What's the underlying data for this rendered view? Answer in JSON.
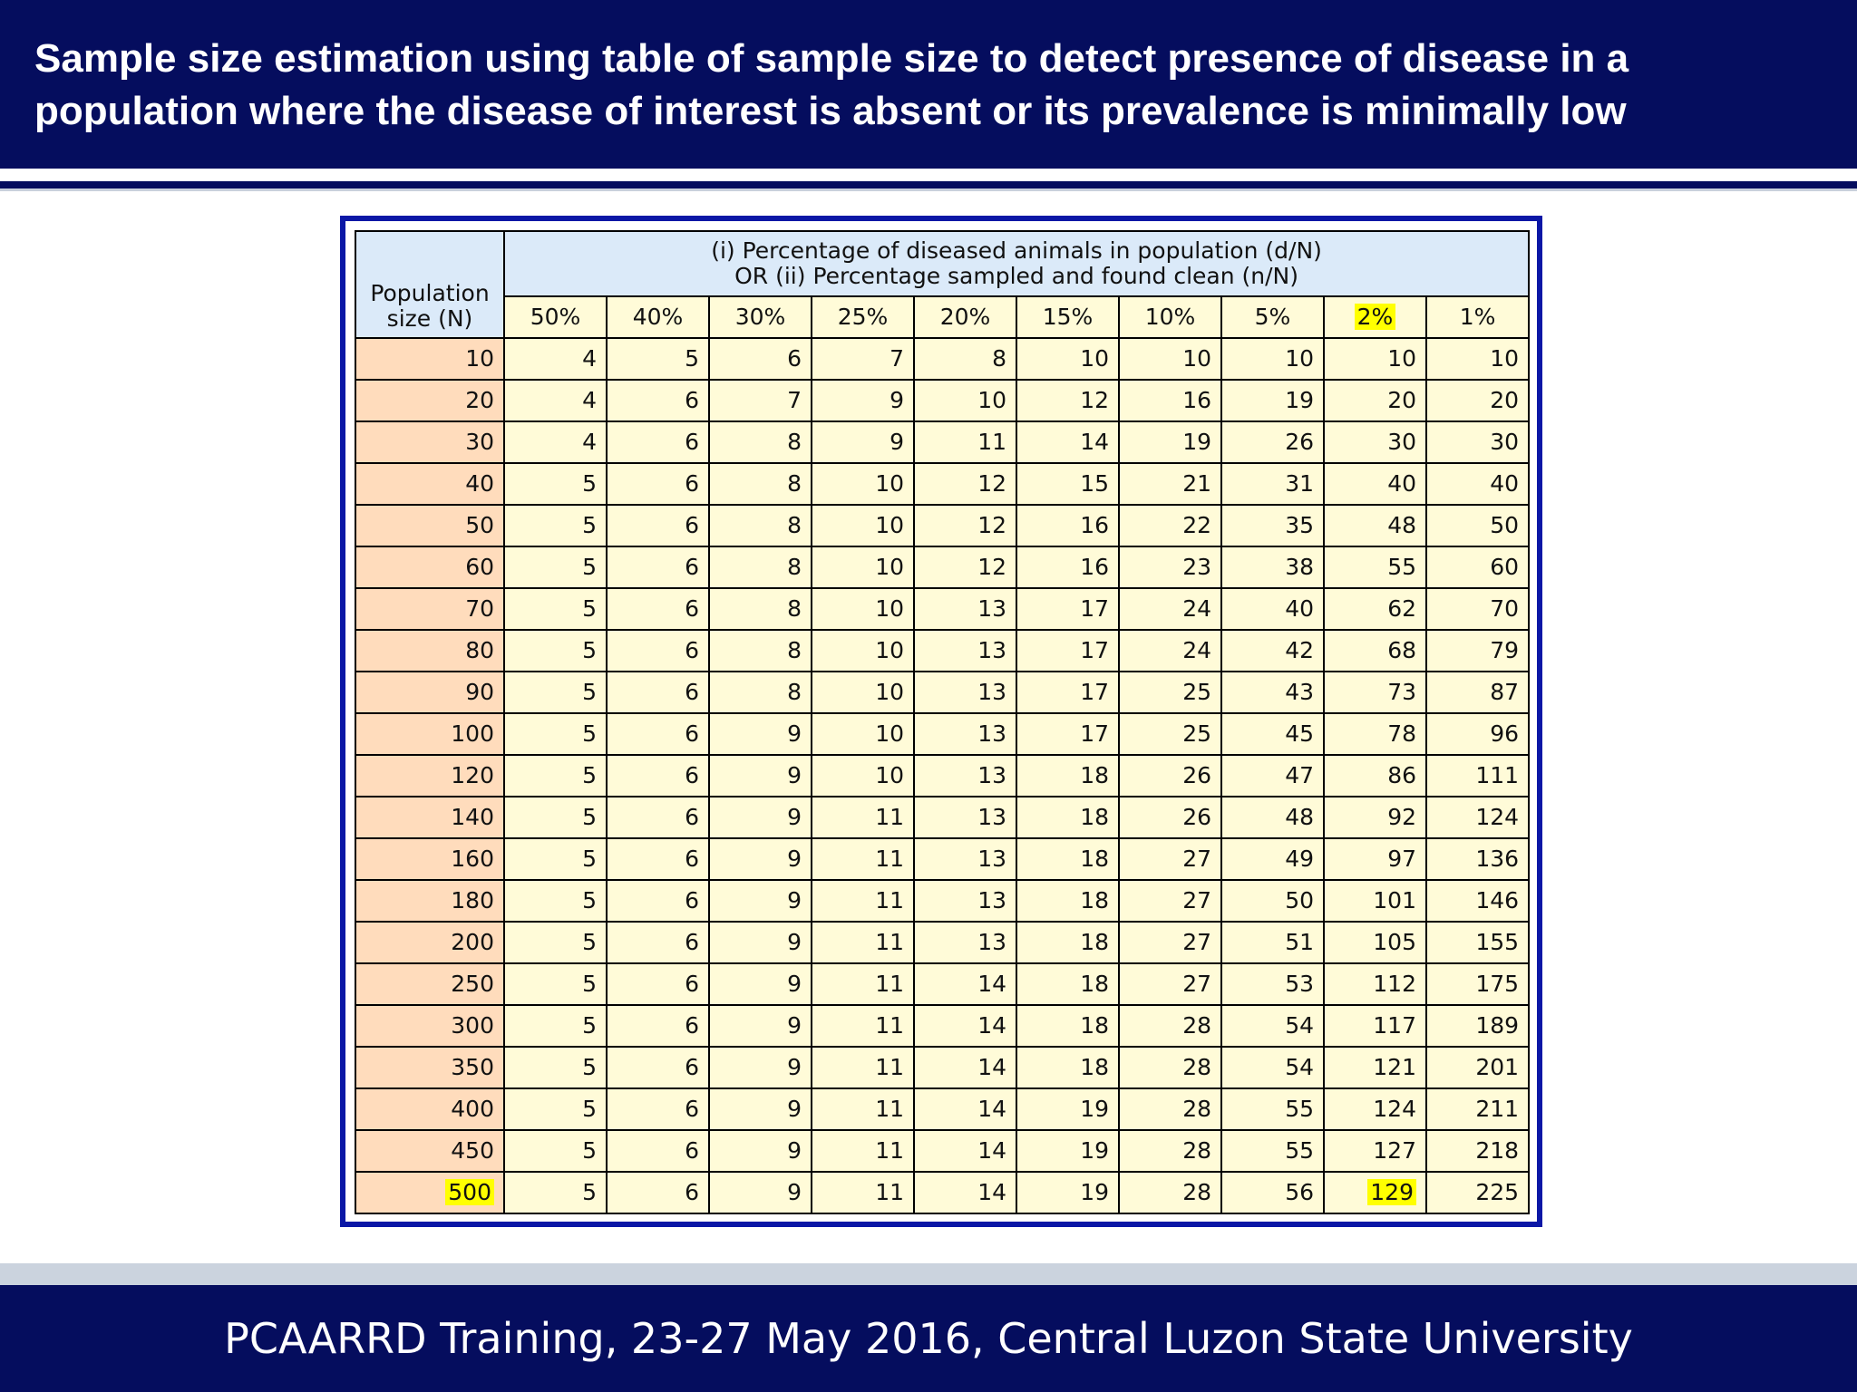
{
  "slide": {
    "title": "Sample size estimation using table of sample size to detect presence of disease in a population where the disease of interest is absent or its prevalence is minimally low",
    "footer": "PCAARRD Training, 23-27 May 2016, Central Luzon State University",
    "colors": {
      "header_bg": "#050d5e",
      "table_border": "#0b17a6",
      "row_header_bg": "#ffdcbc",
      "cell_bg": "#fffbd8",
      "column_header_bg": "#dbeaf9",
      "highlight": "#ffff00"
    }
  },
  "table": {
    "row_header_label_line1": "Population",
    "row_header_label_line2": "size (N)",
    "span_header_line1": "(i) Percentage of diseased animals in population (d/N)",
    "span_header_line2": "OR  (ii) Percentage sampled and found clean (n/N)",
    "columns": [
      "50%",
      "40%",
      "30%",
      "25%",
      "20%",
      "15%",
      "10%",
      "5%",
      "2%",
      "1%"
    ],
    "highlighted_column": "2%",
    "highlighted_row": "500",
    "rows": [
      {
        "n": "10",
        "values": [
          "4",
          "5",
          "6",
          "7",
          "8",
          "10",
          "10",
          "10",
          "10",
          "10"
        ]
      },
      {
        "n": "20",
        "values": [
          "4",
          "6",
          "7",
          "9",
          "10",
          "12",
          "16",
          "19",
          "20",
          "20"
        ]
      },
      {
        "n": "30",
        "values": [
          "4",
          "6",
          "8",
          "9",
          "11",
          "14",
          "19",
          "26",
          "30",
          "30"
        ]
      },
      {
        "n": "40",
        "values": [
          "5",
          "6",
          "8",
          "10",
          "12",
          "15",
          "21",
          "31",
          "40",
          "40"
        ]
      },
      {
        "n": "50",
        "values": [
          "5",
          "6",
          "8",
          "10",
          "12",
          "16",
          "22",
          "35",
          "48",
          "50"
        ]
      },
      {
        "n": "60",
        "values": [
          "5",
          "6",
          "8",
          "10",
          "12",
          "16",
          "23",
          "38",
          "55",
          "60"
        ]
      },
      {
        "n": "70",
        "values": [
          "5",
          "6",
          "8",
          "10",
          "13",
          "17",
          "24",
          "40",
          "62",
          "70"
        ]
      },
      {
        "n": "80",
        "values": [
          "5",
          "6",
          "8",
          "10",
          "13",
          "17",
          "24",
          "42",
          "68",
          "79"
        ]
      },
      {
        "n": "90",
        "values": [
          "5",
          "6",
          "8",
          "10",
          "13",
          "17",
          "25",
          "43",
          "73",
          "87"
        ]
      },
      {
        "n": "100",
        "values": [
          "5",
          "6",
          "9",
          "10",
          "13",
          "17",
          "25",
          "45",
          "78",
          "96"
        ]
      },
      {
        "n": "120",
        "values": [
          "5",
          "6",
          "9",
          "10",
          "13",
          "18",
          "26",
          "47",
          "86",
          "111"
        ]
      },
      {
        "n": "140",
        "values": [
          "5",
          "6",
          "9",
          "11",
          "13",
          "18",
          "26",
          "48",
          "92",
          "124"
        ]
      },
      {
        "n": "160",
        "values": [
          "5",
          "6",
          "9",
          "11",
          "13",
          "18",
          "27",
          "49",
          "97",
          "136"
        ]
      },
      {
        "n": "180",
        "values": [
          "5",
          "6",
          "9",
          "11",
          "13",
          "18",
          "27",
          "50",
          "101",
          "146"
        ]
      },
      {
        "n": "200",
        "values": [
          "5",
          "6",
          "9",
          "11",
          "13",
          "18",
          "27",
          "51",
          "105",
          "155"
        ]
      },
      {
        "n": "250",
        "values": [
          "5",
          "6",
          "9",
          "11",
          "14",
          "18",
          "27",
          "53",
          "112",
          "175"
        ]
      },
      {
        "n": "300",
        "values": [
          "5",
          "6",
          "9",
          "11",
          "14",
          "18",
          "28",
          "54",
          "117",
          "189"
        ]
      },
      {
        "n": "350",
        "values": [
          "5",
          "6",
          "9",
          "11",
          "14",
          "18",
          "28",
          "54",
          "121",
          "201"
        ]
      },
      {
        "n": "400",
        "values": [
          "5",
          "6",
          "9",
          "11",
          "14",
          "19",
          "28",
          "55",
          "124",
          "211"
        ]
      },
      {
        "n": "450",
        "values": [
          "5",
          "6",
          "9",
          "11",
          "14",
          "19",
          "28",
          "55",
          "127",
          "218"
        ]
      },
      {
        "n": "500",
        "values": [
          "5",
          "6",
          "9",
          "11",
          "14",
          "19",
          "28",
          "56",
          "129",
          "225"
        ]
      }
    ]
  }
}
